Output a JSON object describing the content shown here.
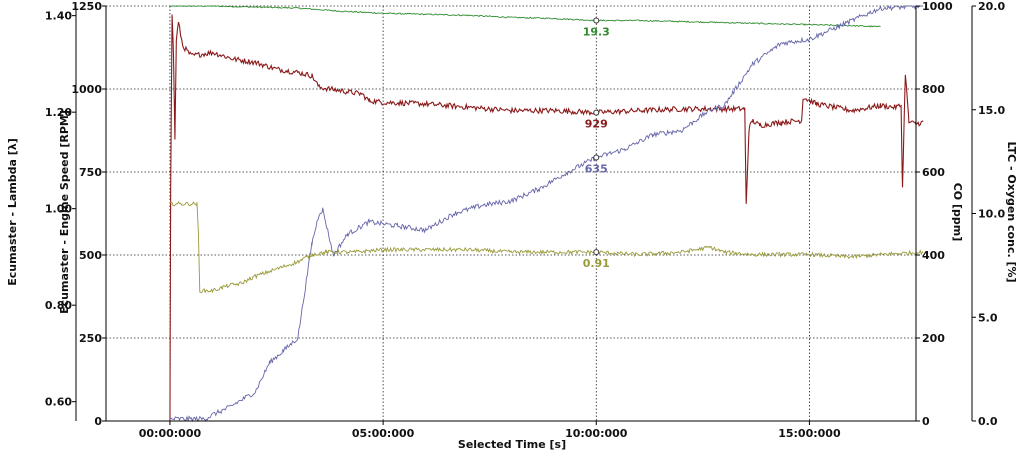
{
  "chart_data": {
    "type": "line",
    "xlabel": "Selected Time [s]",
    "x_ticks": [
      "00:00:000",
      "05:00:000",
      "10:00:000",
      "15:00:000"
    ],
    "x_tick_seconds": [
      0,
      300,
      600,
      900
    ],
    "xlim": [
      -90,
      1050
    ],
    "grid": true,
    "cursor": {
      "x": 600
    },
    "axes": {
      "lambda": {
        "label": "Ecumaster - Lambda [λ]",
        "range": [
          0.56,
          1.42
        ],
        "ticks": [
          "0.60",
          "0.80",
          "1.00",
          "1.20",
          "1.40"
        ],
        "tick_values": [
          0.6,
          0.8,
          1.0,
          1.2,
          1.4
        ]
      },
      "rpm": {
        "label": "Ecumaster - Engine Speed [RPM]",
        "range": [
          0,
          1250
        ],
        "ticks": [
          "0",
          "250",
          "500",
          "750",
          "1000",
          "1250"
        ],
        "tick_values": [
          0,
          250,
          500,
          750,
          1000,
          1250
        ]
      },
      "co": {
        "label": "CO [ppm]",
        "range": [
          0,
          1000
        ],
        "ticks": [
          "0",
          "200",
          "400",
          "600",
          "800",
          "1000"
        ],
        "tick_values": [
          0,
          200,
          400,
          600,
          800,
          1000
        ]
      },
      "o2": {
        "label": "LTC - Oxygen conc. [%]",
        "range": [
          0,
          20
        ],
        "ticks": [
          "0.0",
          "5.0",
          "10.0",
          "15.0",
          "20.0"
        ],
        "tick_values": [
          0,
          5,
          10,
          15,
          20
        ]
      }
    },
    "series": [
      {
        "axis": "o2",
        "color": "#2e8b2e",
        "cursor_label": "19.3",
        "cursor_value": 19.3,
        "noise": 0.03,
        "x": [
          0,
          60,
          120,
          180,
          240,
          300,
          360,
          420,
          480,
          540,
          600,
          660,
          720,
          780,
          840,
          900,
          960,
          1000
        ],
        "y": [
          20.0,
          20.0,
          19.95,
          19.9,
          19.75,
          19.65,
          19.6,
          19.55,
          19.45,
          19.4,
          19.3,
          19.3,
          19.25,
          19.2,
          19.15,
          19.1,
          19.05,
          19.0
        ]
      },
      {
        "axis": "rpm",
        "color": "#8b1a1a",
        "cursor_label": "929",
        "cursor_value": 929,
        "noise": 8,
        "x": [
          0,
          1,
          3,
          5,
          7,
          9,
          12,
          18,
          30,
          60,
          90,
          120,
          150,
          180,
          200,
          210,
          240,
          270,
          280,
          300,
          360,
          420,
          480,
          540,
          600,
          660,
          720,
          780,
          809,
          811,
          815,
          820,
          830,
          860,
          889,
          891,
          910,
          960,
          1000,
          1020,
          1029,
          1031,
          1035,
          1040,
          1050,
          1060
        ],
        "y": [
          0,
          700,
          1230,
          1100,
          850,
          1150,
          1200,
          1130,
          1100,
          1110,
          1090,
          1080,
          1060,
          1050,
          1040,
          1005,
          995,
          985,
          965,
          960,
          955,
          945,
          935,
          935,
          929,
          935,
          940,
          940,
          940,
          650,
          880,
          905,
          890,
          900,
          905,
          975,
          955,
          935,
          950,
          945,
          950,
          700,
          1050,
          900,
          895,
          900
        ]
      },
      {
        "axis": "co",
        "color": "#6666aa",
        "cursor_label": "635",
        "cursor_value": 635,
        "noise": 6,
        "x": [
          0,
          50,
          60,
          80,
          120,
          140,
          160,
          180,
          200,
          210,
          215,
          230,
          250,
          280,
          320,
          360,
          400,
          440,
          480,
          520,
          560,
          600,
          640,
          680,
          720,
          760,
          780,
          820,
          860,
          900,
          940,
          1000,
          1060
        ],
        "y": [
          5,
          5,
          15,
          30,
          70,
          140,
          170,
          200,
          430,
          500,
          510,
          400,
          450,
          480,
          470,
          460,
          500,
          520,
          530,
          560,
          600,
          635,
          655,
          690,
          700,
          750,
          760,
          860,
          910,
          920,
          950,
          995,
          1000
        ]
      },
      {
        "axis": "lambda",
        "color": "#9a9a3a",
        "cursor_label": "0.91",
        "cursor_value": 0.91,
        "noise": 0.004,
        "x": [
          0,
          38,
          40,
          42,
          60,
          80,
          100,
          120,
          150,
          180,
          200,
          220,
          260,
          300,
          360,
          420,
          480,
          540,
          600,
          660,
          720,
          760,
          780,
          820,
          860,
          900,
          960,
          1000,
          1060
        ],
        "y": [
          1.01,
          1.01,
          0.95,
          0.83,
          0.83,
          0.84,
          0.845,
          0.86,
          0.875,
          0.89,
          0.905,
          0.91,
          0.91,
          0.915,
          0.915,
          0.915,
          0.91,
          0.91,
          0.91,
          0.905,
          0.91,
          0.92,
          0.91,
          0.905,
          0.905,
          0.905,
          0.9,
          0.905,
          0.91
        ]
      }
    ]
  }
}
